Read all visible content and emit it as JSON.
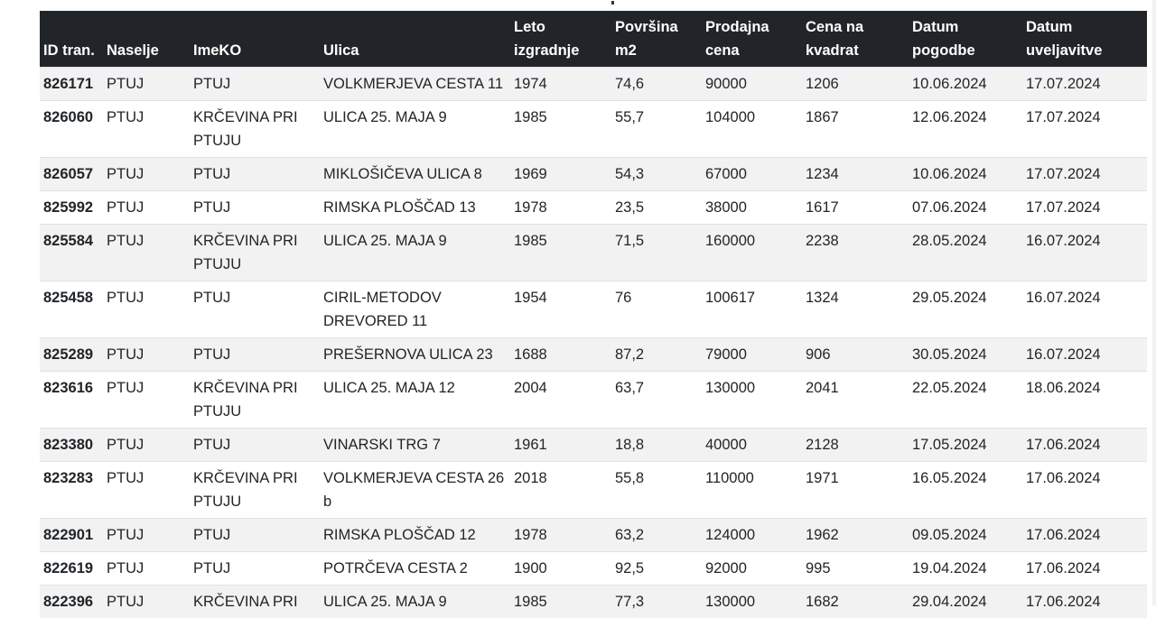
{
  "columns": [
    "ID tran.",
    "Naselje",
    "ImeKO",
    "Ulica",
    "Leto izgradnje",
    "Površina m2",
    "Prodajna cena",
    "Cena na kvadrat",
    "Datum pogodbe",
    "Datum uveljavitve"
  ],
  "rows": [
    [
      "826171",
      "PTUJ",
      "PTUJ",
      "VOLKMERJEVA CESTA 11",
      "1974",
      "74,6",
      "90000",
      "1206",
      "10.06.2024",
      "17.07.2024"
    ],
    [
      "826060",
      "PTUJ",
      "KRČEVINA PRI PTUJU",
      "ULICA 25. MAJA 9",
      "1985",
      "55,7",
      "104000",
      "1867",
      "12.06.2024",
      "17.07.2024"
    ],
    [
      "826057",
      "PTUJ",
      "PTUJ",
      "MIKLOŠIČEVA ULICA 8",
      "1969",
      "54,3",
      "67000",
      "1234",
      "10.06.2024",
      "17.07.2024"
    ],
    [
      "825992",
      "PTUJ",
      "PTUJ",
      "RIMSKA PLOŠČAD 13",
      "1978",
      "23,5",
      "38000",
      "1617",
      "07.06.2024",
      "17.07.2024"
    ],
    [
      "825584",
      "PTUJ",
      "KRČEVINA PRI PTUJU",
      "ULICA 25. MAJA 9",
      "1985",
      "71,5",
      "160000",
      "2238",
      "28.05.2024",
      "16.07.2024"
    ],
    [
      "825458",
      "PTUJ",
      "PTUJ",
      "CIRIL-METODOV DREVORED 11",
      "1954",
      "76",
      "100617",
      "1324",
      "29.05.2024",
      "16.07.2024"
    ],
    [
      "825289",
      "PTUJ",
      "PTUJ",
      "PREŠERNOVA ULICA 23",
      "1688",
      "87,2",
      "79000",
      "906",
      "30.05.2024",
      "16.07.2024"
    ],
    [
      "823616",
      "PTUJ",
      "KRČEVINA PRI PTUJU",
      "ULICA 25. MAJA 12",
      "2004",
      "63,7",
      "130000",
      "2041",
      "22.05.2024",
      "18.06.2024"
    ],
    [
      "823380",
      "PTUJ",
      "PTUJ",
      "VINARSKI TRG 7",
      "1961",
      "18,8",
      "40000",
      "2128",
      "17.05.2024",
      "17.06.2024"
    ],
    [
      "823283",
      "PTUJ",
      "KRČEVINA PRI PTUJU",
      "VOLKMERJEVA CESTA 26 b",
      "2018",
      "55,8",
      "110000",
      "1971",
      "16.05.2024",
      "17.06.2024"
    ],
    [
      "822901",
      "PTUJ",
      "PTUJ",
      "RIMSKA PLOŠČAD 12",
      "1978",
      "63,2",
      "124000",
      "1962",
      "09.05.2024",
      "17.06.2024"
    ],
    [
      "822619",
      "PTUJ",
      "PTUJ",
      "POTRČEVA CESTA 2",
      "1900",
      "92,5",
      "92000",
      "995",
      "19.04.2024",
      "17.06.2024"
    ],
    [
      "822396",
      "PTUJ",
      "KRČEVINA PRI",
      "ULICA 25. MAJA 9",
      "1985",
      "77,3",
      "130000",
      "1682",
      "29.04.2024",
      "17.06.2024"
    ]
  ]
}
